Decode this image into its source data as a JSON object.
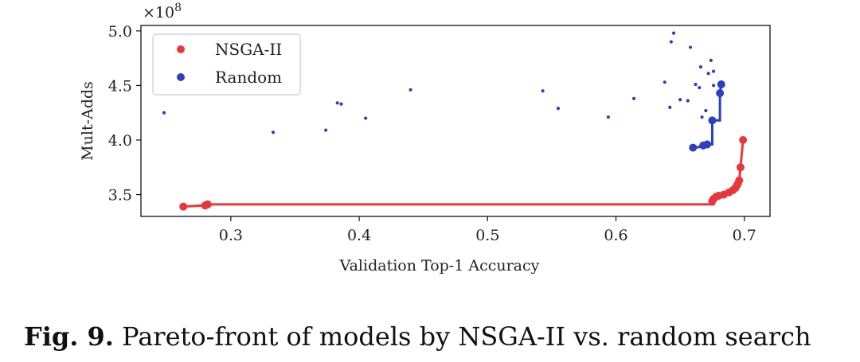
{
  "chart_data": {
    "type": "scatter",
    "xlabel": "Validation Top-1 Accuracy",
    "ylabel": "Mult-Adds",
    "y_multiplier_label": "×10",
    "y_multiplier_exp": "8",
    "xlim": [
      0.23,
      0.72
    ],
    "ylim": [
      3.3,
      5.05
    ],
    "x_ticks": [
      0.3,
      0.4,
      0.5,
      0.6,
      0.7
    ],
    "x_tick_labels": [
      "0.3",
      "0.4",
      "0.5",
      "0.6",
      "0.7"
    ],
    "y_ticks": [
      3.5,
      4.0,
      4.5,
      5.0
    ],
    "y_tick_labels": [
      "3.5",
      "4.0",
      "4.5",
      "5.0"
    ],
    "grid": false,
    "legend_position": "top-left",
    "series": [
      {
        "name": "NSGA-II",
        "color": "#e8373b",
        "points": [
          [
            0.263,
            3.39
          ],
          [
            0.28,
            3.4
          ],
          [
            0.282,
            3.41
          ],
          [
            0.675,
            3.44
          ],
          [
            0.676,
            3.46
          ],
          [
            0.678,
            3.48
          ],
          [
            0.68,
            3.49
          ],
          [
            0.684,
            3.5
          ],
          [
            0.688,
            3.52
          ],
          [
            0.691,
            3.54
          ],
          [
            0.693,
            3.56
          ],
          [
            0.694,
            3.58
          ],
          [
            0.695,
            3.6
          ],
          [
            0.696,
            3.63
          ],
          [
            0.697,
            3.75
          ],
          [
            0.699,
            4.0
          ]
        ],
        "front": [
          [
            0.263,
            3.39
          ],
          [
            0.28,
            3.4
          ],
          [
            0.282,
            3.41
          ],
          [
            0.676,
            3.41
          ],
          [
            0.676,
            3.44
          ],
          [
            0.678,
            3.48
          ],
          [
            0.684,
            3.5
          ],
          [
            0.684,
            3.52
          ],
          [
            0.691,
            3.54
          ],
          [
            0.694,
            3.58
          ],
          [
            0.696,
            3.63
          ],
          [
            0.697,
            3.75
          ],
          [
            0.699,
            4.0
          ]
        ]
      },
      {
        "name": "Random",
        "color": "#2b3fbf",
        "points": [
          [
            0.248,
            4.25
          ],
          [
            0.333,
            4.07
          ],
          [
            0.374,
            4.09
          ],
          [
            0.383,
            4.34
          ],
          [
            0.386,
            4.33
          ],
          [
            0.405,
            4.2
          ],
          [
            0.44,
            4.46
          ],
          [
            0.543,
            4.45
          ],
          [
            0.555,
            4.29
          ],
          [
            0.594,
            4.21
          ],
          [
            0.614,
            4.38
          ],
          [
            0.638,
            4.53
          ],
          [
            0.642,
            4.3
          ],
          [
            0.643,
            4.9
          ],
          [
            0.645,
            4.98
          ],
          [
            0.65,
            4.37
          ],
          [
            0.656,
            4.36
          ],
          [
            0.658,
            4.85
          ],
          [
            0.662,
            4.51
          ],
          [
            0.665,
            4.48
          ],
          [
            0.666,
            4.67
          ],
          [
            0.667,
            4.21
          ],
          [
            0.67,
            4.27
          ],
          [
            0.672,
            4.61
          ],
          [
            0.674,
            4.73
          ],
          [
            0.676,
            4.63
          ],
          [
            0.676,
            4.5
          ],
          [
            0.66,
            3.93
          ],
          [
            0.668,
            3.95
          ],
          [
            0.671,
            3.96
          ],
          [
            0.675,
            4.18
          ],
          [
            0.681,
            4.43
          ],
          [
            0.682,
            4.51
          ]
        ],
        "front": [
          [
            0.66,
            3.93
          ],
          [
            0.668,
            3.94
          ],
          [
            0.671,
            3.96
          ],
          [
            0.675,
            3.96
          ],
          [
            0.675,
            4.18
          ],
          [
            0.681,
            4.18
          ],
          [
            0.681,
            4.43
          ],
          [
            0.682,
            4.51
          ]
        ],
        "front_points": [
          [
            0.66,
            3.93
          ],
          [
            0.668,
            3.95
          ],
          [
            0.671,
            3.96
          ],
          [
            0.675,
            4.18
          ],
          [
            0.681,
            4.43
          ],
          [
            0.682,
            4.51
          ]
        ]
      }
    ]
  },
  "caption": {
    "label": "Fig. 9.",
    "text": "Pareto-front of models by NSGA-II vs. random search"
  }
}
